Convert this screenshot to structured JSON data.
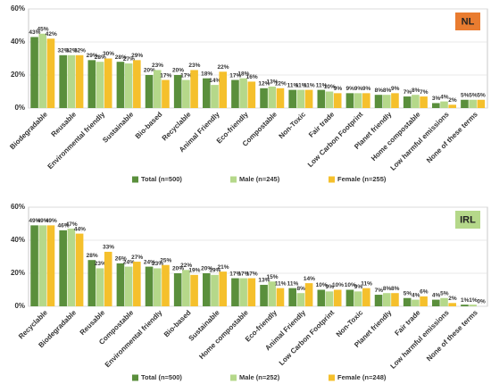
{
  "chart_data": [
    {
      "type": "bar",
      "badge": "NL",
      "badge_color": "#e97c30",
      "categories": [
        "Biodegradable",
        "Reusable",
        "Environmental friendly",
        "Sustainable",
        "Bio-based",
        "Recyclable",
        "Animal Friendly",
        "Eco-friendly",
        "Compostable",
        "Non-Toxic",
        "Fair trade",
        "Low Carbon Footprint",
        "Planet friendly",
        "Home compostable",
        "Low harmful emissions",
        "None of these terms"
      ],
      "series": [
        {
          "name": "Total (n=500)",
          "color": "#5a8f3c",
          "values": [
            43,
            32,
            29,
            28,
            20,
            20,
            18,
            17,
            12,
            11,
            11,
            9,
            8,
            7,
            3,
            5
          ],
          "value_labels": [
            "43%",
            "32%",
            "29%",
            "28%",
            "20%",
            "20%",
            "18%",
            "17%",
            "12%",
            "11%",
            "11%",
            "9%",
            "8%",
            "7%",
            "3%",
            "5%"
          ]
        },
        {
          "name": "Male (n=245)",
          "color": "#b5d88a",
          "values": [
            45,
            32,
            28,
            27,
            23,
            17,
            14,
            18,
            13,
            11,
            10,
            9,
            8,
            8,
            4,
            5
          ],
          "value_labels": [
            "45%",
            "32%",
            "28%",
            "27%",
            "23%",
            "17%",
            "14%",
            "18%",
            "13%",
            "11%",
            "10%",
            "9%",
            "8%",
            "8%",
            "4%",
            "5%"
          ]
        },
        {
          "name": "Female (n=255)",
          "color": "#f5c02c",
          "values": [
            42,
            32,
            30,
            29,
            17,
            23,
            22,
            16,
            12,
            11,
            9,
            9,
            9,
            7,
            2,
            5
          ],
          "value_labels": [
            "42%",
            "32%",
            "30%",
            "29%",
            "17%",
            "23%",
            "22%",
            "16%",
            "12%",
            "11%",
            "9%",
            "9%",
            "9%",
            "7%",
            "2%",
            "5%"
          ]
        }
      ],
      "ylim": [
        0,
        60
      ],
      "yticks": [
        {
          "value": 0,
          "label": "0%"
        },
        {
          "value": 20,
          "label": "20%"
        },
        {
          "value": 40,
          "label": "40%"
        },
        {
          "value": 60,
          "label": "60%"
        }
      ],
      "grid": true,
      "legend": "bottom"
    },
    {
      "type": "bar",
      "badge": "IRL",
      "badge_color": "#b5d88a",
      "categories": [
        "Recyclable",
        "Biodegradable",
        "Reusable",
        "Compostable",
        "Environmental friendly",
        "Bio-based",
        "Sustainable",
        "Home compostable",
        "Eco-friendly",
        "Animal Friendly",
        "Low Carbon Footprint",
        "Non-Toxic",
        "Planet friendly",
        "Fair trade",
        "Low harmful emissions",
        "None of these terms"
      ],
      "series": [
        {
          "name": "Total (n=500)",
          "color": "#5a8f3c",
          "values": [
            49,
            46,
            28,
            26,
            24,
            20,
            20,
            17,
            13,
            11,
            10,
            10,
            7,
            5,
            4,
            1
          ],
          "value_labels": [
            "49%",
            "46%",
            "28%",
            "26%",
            "24%",
            "20%",
            "20%",
            "17%",
            "13%",
            "11%",
            "10%",
            "10%",
            "7%",
            "5%",
            "4%",
            "1%"
          ]
        },
        {
          "name": "Male (n=252)",
          "color": "#b5d88a",
          "values": [
            49,
            47,
            23,
            24,
            23,
            22,
            19,
            17,
            15,
            8,
            9,
            9,
            8,
            4,
            5,
            1
          ],
          "value_labels": [
            "49%",
            "47%",
            "23%",
            "24%",
            "23%",
            "22%",
            "19%",
            "17%",
            "15%",
            "8%",
            "9%",
            "9%",
            "8%",
            "4%",
            "5%",
            "1%"
          ]
        },
        {
          "name": "Female (n=248)",
          "color": "#f5c02c",
          "values": [
            49,
            44,
            33,
            27,
            25,
            19,
            21,
            17,
            11,
            14,
            10,
            11,
            8,
            6,
            2,
            0
          ],
          "value_labels": [
            "49%",
            "44%",
            "33%",
            "27%",
            "25%",
            "19%",
            "21%",
            "17%",
            "11%",
            "14%",
            "10%",
            "11%",
            "8%",
            "6%",
            "2%",
            "0%"
          ]
        }
      ],
      "ylim": [
        0,
        60
      ],
      "yticks": [
        {
          "value": 0,
          "label": "0%"
        },
        {
          "value": 20,
          "label": "20%"
        },
        {
          "value": 40,
          "label": "40%"
        },
        {
          "value": 60,
          "label": "60%"
        }
      ],
      "grid": true,
      "legend": "bottom"
    }
  ]
}
